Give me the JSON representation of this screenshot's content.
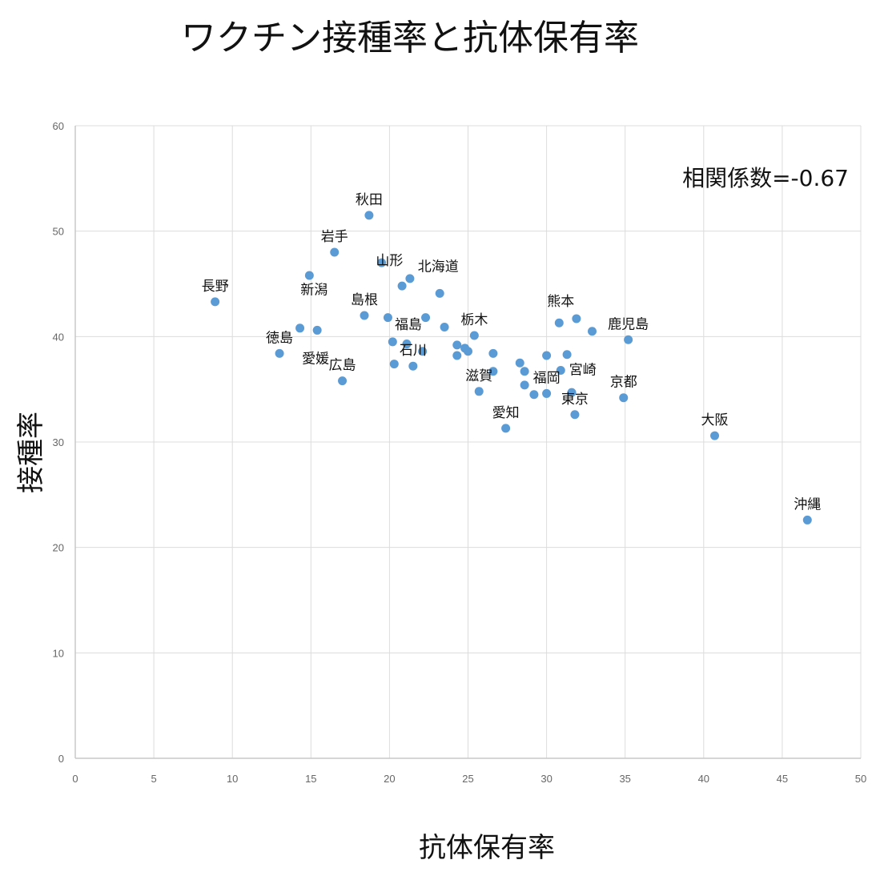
{
  "chart_data": {
    "type": "scatter",
    "title": "ワクチン接種率と抗体保有率",
    "xlabel": "抗体保有率",
    "ylabel": "接種率",
    "xlim": [
      0,
      50
    ],
    "ylim": [
      0,
      60
    ],
    "xticks": [
      "0",
      "5",
      "10",
      "15",
      "20",
      "25",
      "30",
      "35",
      "40",
      "45",
      "50"
    ],
    "yticks": [
      "0",
      "10",
      "20",
      "30",
      "40",
      "50",
      "60"
    ],
    "grid": true,
    "annotation": "相関係数=-0.67",
    "marker_color": "#5b9bd5",
    "points": [
      {
        "x": 8.9,
        "y": 43.3,
        "label": "長野"
      },
      {
        "x": 13.0,
        "y": 38.4,
        "label": "徳島"
      },
      {
        "x": 14.3,
        "y": 40.8,
        "label": ""
      },
      {
        "x": 14.9,
        "y": 45.8,
        "label": ""
      },
      {
        "x": 15.4,
        "y": 40.6,
        "label": ""
      },
      {
        "x": 16.5,
        "y": 48.0,
        "label": "岩手"
      },
      {
        "x": 17.0,
        "y": 35.8,
        "label": "広島"
      },
      {
        "x": 18.4,
        "y": 42.0,
        "label": "島根"
      },
      {
        "x": 18.7,
        "y": 51.5,
        "label": "秋田"
      },
      {
        "x": 19.5,
        "y": 47.0,
        "label": ""
      },
      {
        "x": 19.9,
        "y": 41.8,
        "label": ""
      },
      {
        "x": 20.2,
        "y": 39.5,
        "label": ""
      },
      {
        "x": 20.3,
        "y": 37.4,
        "label": ""
      },
      {
        "x": 20.8,
        "y": 44.8,
        "label": ""
      },
      {
        "x": 21.1,
        "y": 39.3,
        "label": ""
      },
      {
        "x": 21.3,
        "y": 45.5,
        "label": ""
      },
      {
        "x": 21.5,
        "y": 37.2,
        "label": "石川"
      },
      {
        "x": 22.1,
        "y": 38.6,
        "label": ""
      },
      {
        "x": 22.3,
        "y": 41.8,
        "label": ""
      },
      {
        "x": 23.2,
        "y": 44.1,
        "label": ""
      },
      {
        "x": 23.5,
        "y": 40.9,
        "label": ""
      },
      {
        "x": 24.3,
        "y": 39.2,
        "label": ""
      },
      {
        "x": 24.3,
        "y": 38.2,
        "label": ""
      },
      {
        "x": 24.8,
        "y": 38.9,
        "label": ""
      },
      {
        "x": 25.0,
        "y": 38.6,
        "label": ""
      },
      {
        "x": 25.4,
        "y": 40.1,
        "label": "栃木"
      },
      {
        "x": 25.7,
        "y": 34.8,
        "label": "滋賀"
      },
      {
        "x": 26.6,
        "y": 38.4,
        "label": ""
      },
      {
        "x": 26.6,
        "y": 36.7,
        "label": ""
      },
      {
        "x": 27.4,
        "y": 31.3,
        "label": "愛知"
      },
      {
        "x": 28.3,
        "y": 37.5,
        "label": ""
      },
      {
        "x": 28.6,
        "y": 36.7,
        "label": ""
      },
      {
        "x": 28.6,
        "y": 35.4,
        "label": ""
      },
      {
        "x": 29.2,
        "y": 34.5,
        "label": ""
      },
      {
        "x": 30.0,
        "y": 38.2,
        "label": ""
      },
      {
        "x": 30.0,
        "y": 34.6,
        "label": "福岡"
      },
      {
        "x": 30.8,
        "y": 41.3,
        "label": ""
      },
      {
        "x": 30.9,
        "y": 36.8,
        "label": ""
      },
      {
        "x": 31.3,
        "y": 38.3,
        "label": ""
      },
      {
        "x": 31.6,
        "y": 34.7,
        "label": ""
      },
      {
        "x": 31.8,
        "y": 32.6,
        "label": "東京"
      },
      {
        "x": 31.9,
        "y": 41.7,
        "label": ""
      },
      {
        "x": 32.9,
        "y": 40.5,
        "label": ""
      },
      {
        "x": 34.9,
        "y": 34.2,
        "label": "京都"
      },
      {
        "x": 35.2,
        "y": 39.7,
        "label": "鹿児島"
      },
      {
        "x": 40.7,
        "y": 30.6,
        "label": "大阪"
      },
      {
        "x": 46.6,
        "y": 22.6,
        "label": "沖縄"
      }
    ],
    "floating_labels": [
      {
        "x": 15.2,
        "y": 44.0,
        "label": "新潟"
      },
      {
        "x": 15.3,
        "y": 37.5,
        "label": "愛媛"
      },
      {
        "x": 20.0,
        "y": 46.8,
        "label": "山形"
      },
      {
        "x": 23.1,
        "y": 46.2,
        "label": "北海道"
      },
      {
        "x": 21.2,
        "y": 40.7,
        "label": "福島"
      },
      {
        "x": 30.9,
        "y": 42.9,
        "label": "熊本"
      },
      {
        "x": 32.3,
        "y": 36.4,
        "label": "宮崎"
      }
    ]
  }
}
